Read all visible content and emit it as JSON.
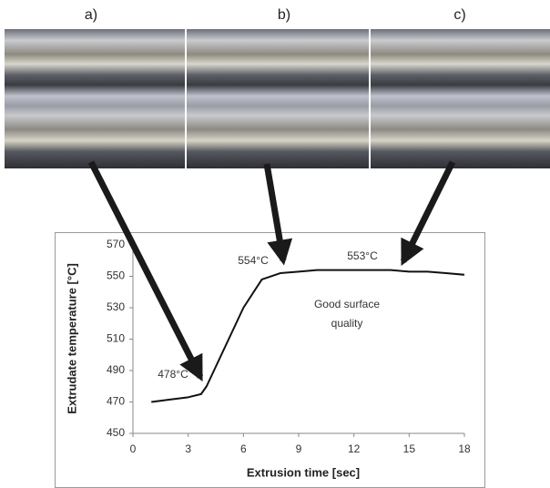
{
  "panels": [
    "a)",
    "b)",
    "c)"
  ],
  "chart_data": {
    "type": "line",
    "x_label": "Extrusion time [sec]",
    "y_label": "Extrudate  temperature [°C]",
    "annotations": [
      "478°C",
      "554°C",
      "553°C",
      "Good surface",
      "quality"
    ],
    "x": [
      1,
      2,
      3,
      3.7,
      4,
      5,
      6,
      7,
      8,
      9,
      10,
      12,
      14,
      15,
      16,
      17,
      18
    ],
    "series": [
      {
        "color": "#111111",
        "values": [
          470,
          471.5,
          473,
          475,
          480,
          505,
          530,
          548,
          552,
          553,
          554,
          554,
          554,
          553,
          553,
          552,
          551
        ]
      }
    ],
    "xlim": [
      0,
      18
    ],
    "xticks": [
      0,
      3,
      6,
      9,
      12,
      15,
      18
    ],
    "ylim": [
      450,
      570
    ],
    "yticks": [
      450,
      470,
      490,
      510,
      530,
      550,
      570
    ],
    "grid": false
  }
}
